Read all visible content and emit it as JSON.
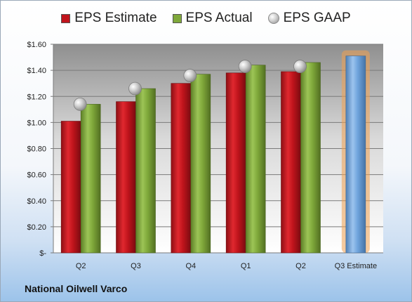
{
  "chart_data": {
    "type": "bar",
    "categories": [
      "Q2",
      "Q3",
      "Q4",
      "Q1",
      "Q2",
      "Q3 Estimate"
    ],
    "series": [
      {
        "name": "EPS Estimate",
        "values": [
          1.01,
          1.16,
          1.3,
          1.38,
          1.39,
          null
        ],
        "color": "#c0141c"
      },
      {
        "name": "EPS Actual",
        "values": [
          1.14,
          1.26,
          1.37,
          1.44,
          1.46,
          null
        ],
        "color": "#7fa83a"
      },
      {
        "name": "EPS GAAP",
        "values": [
          1.14,
          1.26,
          1.36,
          1.43,
          1.43,
          null
        ],
        "color": "#b8b8b8",
        "style": "marker"
      },
      {
        "name": "Q3 Estimate",
        "values": [
          null,
          null,
          null,
          null,
          null,
          1.51
        ],
        "color": "#6fa4dc",
        "highlight": "#f0a050"
      }
    ],
    "ylim": [
      0,
      1.6
    ],
    "yticks": [
      "$-",
      "$0.20",
      "$0.40",
      "$0.60",
      "$0.80",
      "$1.00",
      "$1.20",
      "$1.40",
      "$1.60"
    ],
    "grid": true,
    "legend_position": "top"
  },
  "legend": {
    "estimate": "EPS Estimate",
    "actual": "EPS Actual",
    "gaap": "EPS GAAP"
  },
  "footer": {
    "company": "National Oilwell Varco"
  }
}
